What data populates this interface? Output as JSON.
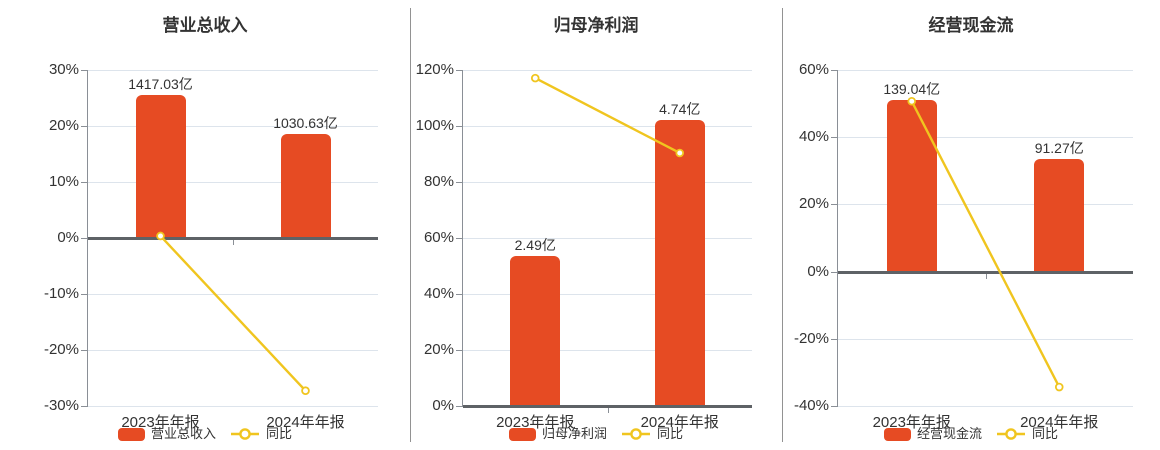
{
  "colors": {
    "bar": "#e64b23",
    "line": "#f0c51f",
    "grid": "#dde4ec",
    "zero_axis": "#5e6266",
    "axis": "#8a8f96",
    "text": "#333333",
    "divider": "#929292",
    "background": "#ffffff",
    "marker_fill": "#ffffff"
  },
  "chart_data": [
    {
      "type": "bar+line",
      "title": "营业总收入",
      "categories": [
        "2023年年报",
        "2024年年报"
      ],
      "bar_series": {
        "name": "营业总收入",
        "values": [
          1417.03,
          1030.63
        ],
        "unit": "亿",
        "labels": [
          "1417.03亿",
          "1030.63亿"
        ]
      },
      "line_series": {
        "name": "同比",
        "values_pct": [
          0.36,
          -27.27
        ]
      },
      "y_axis": {
        "min": -30,
        "max": 30,
        "step": 10,
        "tick_labels": [
          "30%",
          "20%",
          "10%",
          "0%",
          "-10%",
          "-20%",
          "-30%"
        ]
      },
      "legend_position": "bottom",
      "grid": true
    },
    {
      "type": "bar+line",
      "title": "归母净利润",
      "categories": [
        "2023年年报",
        "2024年年报"
      ],
      "bar_series": {
        "name": "归母净利润",
        "values": [
          2.49,
          4.74
        ],
        "unit": "亿",
        "labels": [
          "2.49亿",
          "4.74亿"
        ]
      },
      "line_series": {
        "name": "同比",
        "values_pct": [
          117.1,
          90.36
        ]
      },
      "y_axis": {
        "min": 0,
        "max": 120,
        "step": 20,
        "tick_labels": [
          "120%",
          "100%",
          "80%",
          "60%",
          "40%",
          "20%",
          "0%"
        ]
      },
      "legend_position": "bottom",
      "grid": true
    },
    {
      "type": "bar+line",
      "title": "经营现金流",
      "categories": [
        "2023年年报",
        "2024年年报"
      ],
      "bar_series": {
        "name": "经营现金流",
        "values": [
          139.04,
          91.27
        ],
        "unit": "亿",
        "labels": [
          "139.04亿",
          "91.27亿"
        ]
      },
      "line_series": {
        "name": "同比",
        "values_pct": [
          50.7,
          -34.36
        ]
      },
      "y_axis": {
        "min": -40,
        "max": 60,
        "step": 20,
        "tick_labels": [
          "60%",
          "40%",
          "20%",
          "0%",
          "-20%",
          "-40%"
        ]
      },
      "legend_position": "bottom",
      "grid": true
    }
  ]
}
